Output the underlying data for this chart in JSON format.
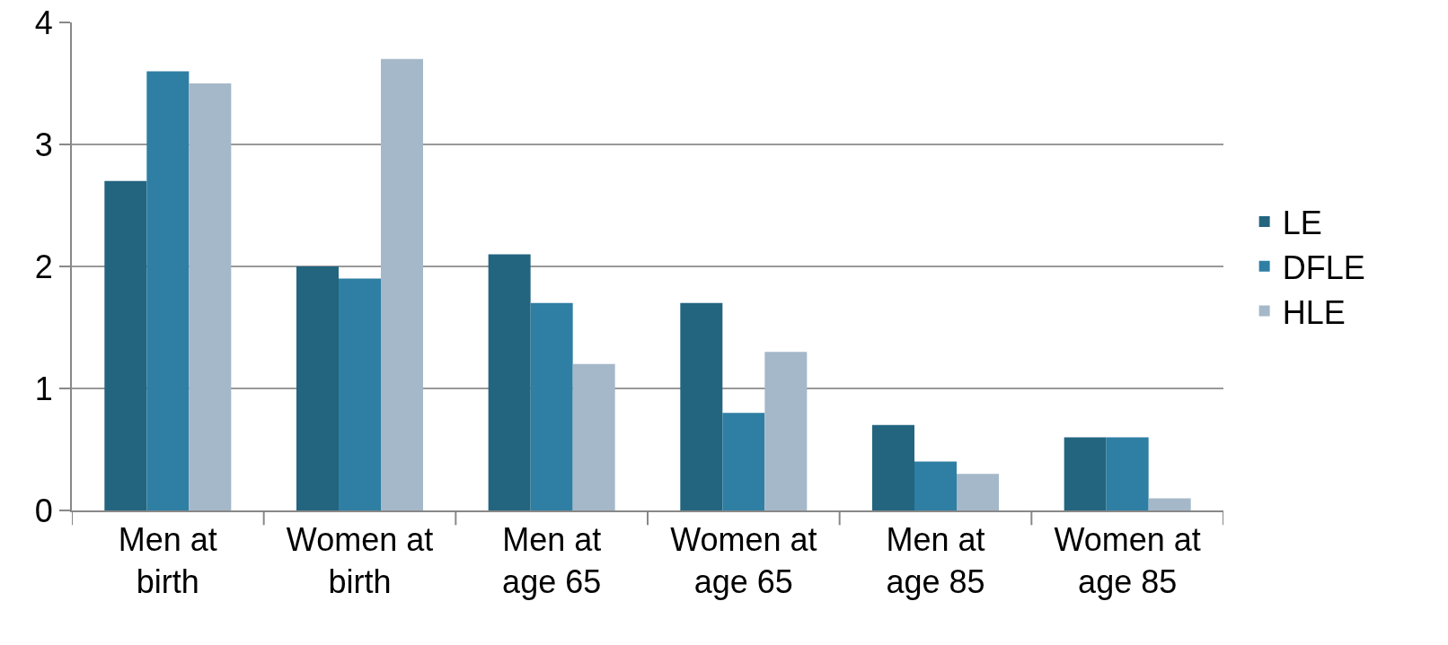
{
  "chart_data": {
    "type": "bar",
    "categories": [
      "Men at birth",
      "Women at birth",
      "Men at age 65",
      "Women at age 65",
      "Men at age 85",
      "Women at age 85"
    ],
    "series": [
      {
        "name": "LE",
        "color": "#23657f",
        "values": [
          2.7,
          2.0,
          2.1,
          1.7,
          0.7,
          0.6
        ]
      },
      {
        "name": "DFLE",
        "color": "#2e7fa3",
        "values": [
          3.6,
          1.9,
          1.7,
          0.8,
          0.4,
          0.6
        ]
      },
      {
        "name": "HLE",
        "color": "#a5b8c9",
        "values": [
          3.5,
          3.7,
          1.2,
          1.3,
          0.3,
          0.1
        ]
      }
    ],
    "ylim": [
      0,
      4
    ],
    "yticks": [
      0,
      1,
      2,
      3,
      4
    ],
    "grid": "y",
    "legend": "right"
  }
}
